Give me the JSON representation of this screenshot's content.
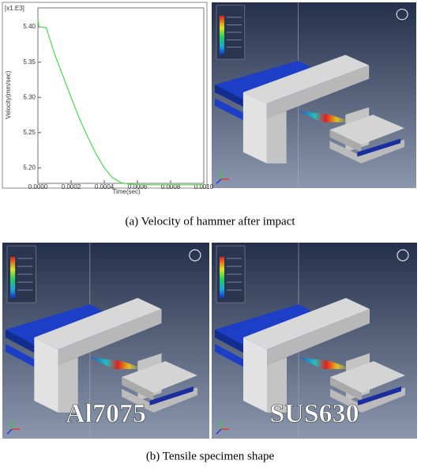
{
  "chart_data": {
    "type": "line",
    "annotation": "[x1.E3]",
    "x_label": "Time(sec)",
    "y_label": "Velocity(mm/sec)",
    "x": [
      0,
      5e-06,
      1e-05,
      5e-05,
      0.0001,
      0.00015,
      0.0002,
      0.00025,
      0.0003,
      0.00035,
      0.0004,
      0.00045,
      0.0005,
      0.00055,
      0.0006,
      0.0008,
      0.001
    ],
    "values": [
      5.412,
      5.402,
      5.4,
      5.399,
      5.362,
      5.331,
      5.3,
      5.27,
      5.244,
      5.22,
      5.2,
      5.186,
      5.179,
      5.177,
      5.176,
      5.176,
      5.176
    ],
    "color": "#55dd55",
    "xlim": [
      0,
      0.001
    ],
    "ylim": [
      5.178,
      5.427
    ],
    "xticks": [
      {
        "value": 0,
        "label": "0.0000"
      },
      {
        "value": 0.0002,
        "label": "0.0002"
      },
      {
        "value": 0.0004,
        "label": "0.0004"
      },
      {
        "value": 0.0006,
        "label": "0.0006"
      },
      {
        "value": 0.0008,
        "label": "0.0008"
      },
      {
        "value": 0.001,
        "label": "0.0010"
      }
    ],
    "yticks": [
      {
        "value": 5.2,
        "label": "5.20"
      },
      5.25,
      {
        "value": 5.3,
        "label": "5.30"
      },
      5.35,
      {
        "value": 5.4,
        "label": "5.40"
      }
    ]
  },
  "captions": [
    "(a) Velocity of hammer after impact",
    "(b) Tensile specimen shape"
  ],
  "panel_labels": [
    "Al7075",
    "SUS630"
  ]
}
